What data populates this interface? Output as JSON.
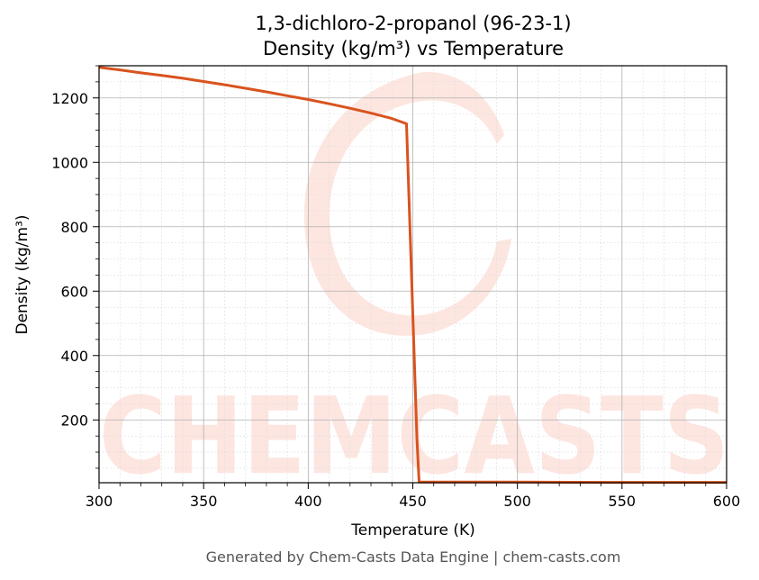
{
  "colors": {
    "series": "#d9531e",
    "watermark": "#fde3dd",
    "grid_major": "#b0b0b0",
    "grid_minor": "#dddddd",
    "footer_text": "#555555"
  },
  "watermark": {
    "text": "CHEMCASTS"
  },
  "footer": {
    "text": "Generated by Chem-Casts Data Engine | chem-casts.com"
  },
  "chart_data": {
    "type": "line",
    "title": "1,3-dichloro-2-propanol (96-23-1)",
    "subtitle": "Density (kg/m³) vs Temperature",
    "xlabel": "Temperature (K)",
    "ylabel": "Density (kg/m³)",
    "xlim": [
      300,
      600
    ],
    "ylim": [
      5,
      1300
    ],
    "xticks": [
      300,
      350,
      400,
      450,
      500,
      550,
      600
    ],
    "yticks": [
      200,
      400,
      600,
      800,
      1000,
      1200
    ],
    "grid": true,
    "minor_grid": true,
    "series": [
      {
        "x": [
          300,
          310,
          320,
          330,
          340,
          350,
          360,
          370,
          380,
          390,
          400,
          410,
          420,
          430,
          440,
          447,
          452,
          453,
          470,
          500,
          550,
          600
        ],
        "y": [
          1295,
          1287,
          1278,
          1270,
          1261,
          1251,
          1241,
          1230,
          1219,
          1207,
          1195,
          1182,
          1168,
          1153,
          1136,
          1120,
          140,
          7,
          7,
          7,
          6,
          6
        ]
      }
    ]
  }
}
